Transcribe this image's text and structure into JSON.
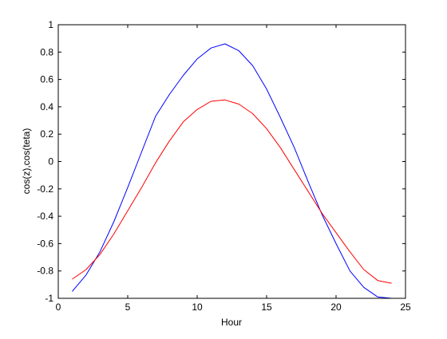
{
  "chart_data": {
    "type": "line",
    "xlabel": "Hour",
    "ylabel": "cos(z),cos(teta)",
    "xlim": [
      0,
      25
    ],
    "ylim": [
      -1,
      1
    ],
    "x_ticks": [
      0,
      5,
      10,
      15,
      20,
      25
    ],
    "y_ticks": [
      -1,
      -0.8,
      -0.6,
      -0.4,
      -0.2,
      0,
      0.2,
      0.4,
      0.6,
      0.8,
      1
    ],
    "x_tick_labels": [
      "0",
      "5",
      "10",
      "15",
      "20",
      "25"
    ],
    "y_tick_labels": [
      "-1",
      "-0.8",
      "-0.6",
      "-0.4",
      "-0.2",
      "0",
      "0.2",
      "0.4",
      "0.6",
      "0.8",
      "1"
    ],
    "grid": false,
    "x": [
      1,
      2,
      3,
      4,
      5,
      6,
      7,
      8,
      9,
      10,
      11,
      12,
      13,
      14,
      15,
      16,
      17,
      18,
      19,
      20,
      21,
      22,
      23,
      24
    ],
    "series": [
      {
        "color": "#0000ff",
        "values": [
          -0.95,
          -0.83,
          -0.66,
          -0.44,
          -0.19,
          0.07,
          0.33,
          0.49,
          0.63,
          0.75,
          0.83,
          0.86,
          0.81,
          0.7,
          0.53,
          0.32,
          0.1,
          -0.15,
          -0.39,
          -0.6,
          -0.8,
          -0.92,
          -0.99,
          -1.0
        ]
      },
      {
        "color": "#ff0000",
        "values": [
          -0.86,
          -0.79,
          -0.68,
          -0.53,
          -0.36,
          -0.19,
          -0.01,
          0.15,
          0.29,
          0.38,
          0.44,
          0.45,
          0.42,
          0.35,
          0.24,
          0.1,
          -0.06,
          -0.22,
          -0.38,
          -0.52,
          -0.66,
          -0.79,
          -0.87,
          -0.89
        ]
      }
    ]
  }
}
